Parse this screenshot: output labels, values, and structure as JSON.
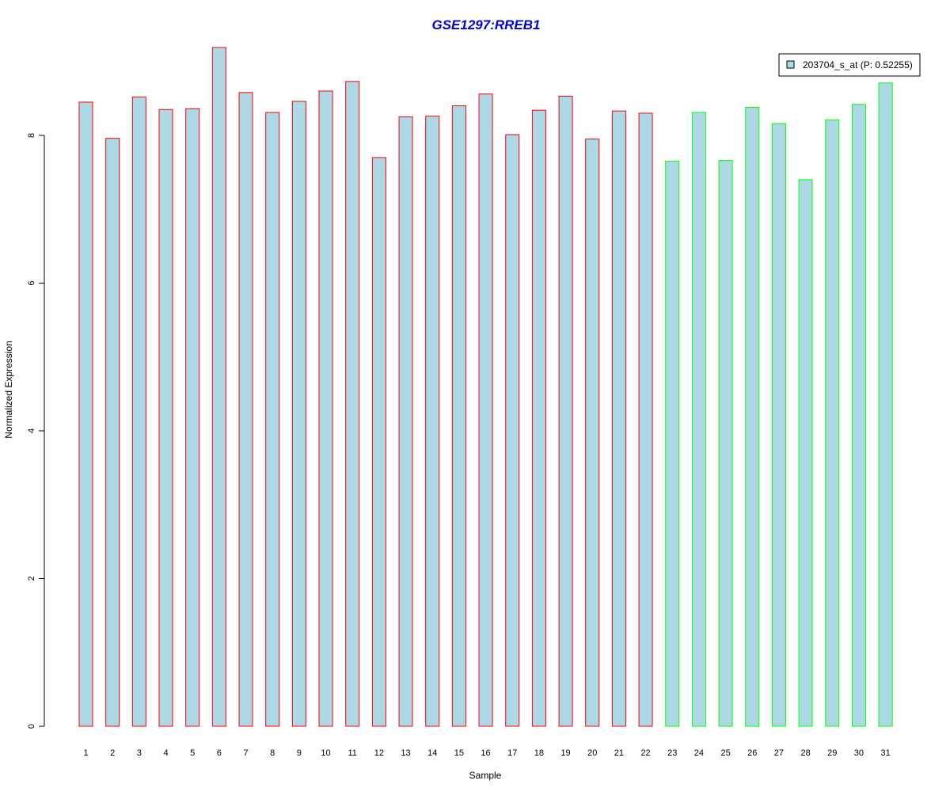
{
  "chart_data": {
    "type": "bar",
    "title": "GSE1297:RREB1",
    "xlabel": "Sample",
    "ylabel": "Normalized Expression",
    "categories": [
      "1",
      "2",
      "3",
      "4",
      "5",
      "6",
      "7",
      "8",
      "9",
      "10",
      "11",
      "12",
      "13",
      "14",
      "15",
      "16",
      "17",
      "18",
      "19",
      "20",
      "21",
      "22",
      "23",
      "24",
      "25",
      "26",
      "27",
      "28",
      "29",
      "30",
      "31"
    ],
    "series": [
      {
        "name": "203704_s_at (P: 0.52255)",
        "values": [
          8.45,
          7.96,
          8.52,
          8.35,
          8.36,
          9.19,
          8.58,
          8.31,
          8.46,
          8.6,
          8.73,
          7.7,
          8.25,
          8.26,
          8.4,
          8.56,
          8.01,
          8.34,
          8.53,
          7.95,
          8.33,
          8.3,
          7.65,
          8.31,
          7.66,
          8.38,
          8.16,
          7.4,
          8.21,
          8.42,
          8.71
        ]
      }
    ],
    "group_colors": [
      "#ff0000",
      "#ff0000",
      "#ff0000",
      "#ff0000",
      "#ff0000",
      "#ff0000",
      "#ff0000",
      "#ff0000",
      "#ff0000",
      "#ff0000",
      "#ff0000",
      "#ff0000",
      "#ff0000",
      "#ff0000",
      "#ff0000",
      "#ff0000",
      "#ff0000",
      "#ff0000",
      "#ff0000",
      "#ff0000",
      "#ff0000",
      "#ff0000",
      "#00ff00",
      "#00ff00",
      "#00ff00",
      "#00ff00",
      "#00ff00",
      "#00ff00",
      "#00ff00",
      "#00ff00",
      "#00ff00"
    ],
    "bar_fill": "#add8e6",
    "title_color": "#0000cc",
    "ylim": [
      0,
      9.2
    ],
    "yticks": [
      0,
      2,
      4,
      6,
      8
    ],
    "legend_position": "top-right",
    "grid": false
  }
}
